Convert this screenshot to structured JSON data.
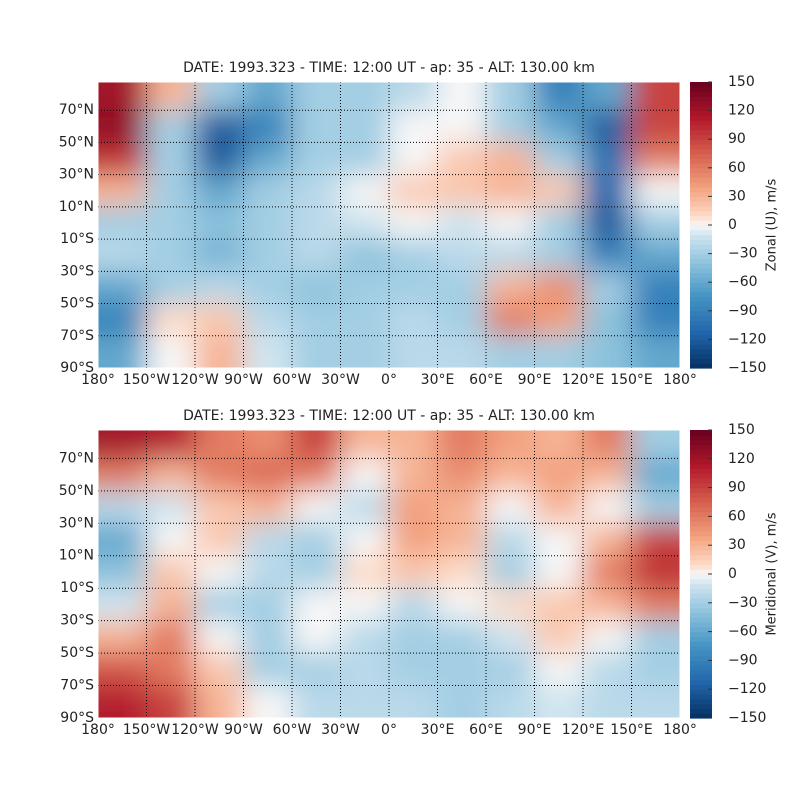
{
  "chart_data": [
    {
      "type": "heatmap",
      "title": "DATE: 1993.323 - TIME: 12:00 UT - ap:  35 - ALT:  130.00 km",
      "colorbar_label": "Zonal (U), m/s",
      "xlim": [
        -180,
        180
      ],
      "ylim": [
        -90,
        87.5
      ],
      "clim": [
        -150,
        150
      ],
      "grid": true,
      "xticks": [
        {
          "value": -180,
          "label": "180°"
        },
        {
          "value": -150,
          "label": "150°W"
        },
        {
          "value": -120,
          "label": "120°W"
        },
        {
          "value": -90,
          "label": "90°W"
        },
        {
          "value": -60,
          "label": "60°W"
        },
        {
          "value": -30,
          "label": "30°W"
        },
        {
          "value": 0,
          "label": "0°"
        },
        {
          "value": 30,
          "label": "30°E"
        },
        {
          "value": 60,
          "label": "60°E"
        },
        {
          "value": 90,
          "label": "90°E"
        },
        {
          "value": 120,
          "label": "120°E"
        },
        {
          "value": 150,
          "label": "150°E"
        },
        {
          "value": 180,
          "label": "180°"
        }
      ],
      "yticks": [
        {
          "value": -90,
          "label": "90°S"
        },
        {
          "value": -70,
          "label": "70°S"
        },
        {
          "value": -50,
          "label": "50°S"
        },
        {
          "value": -30,
          "label": "30°S"
        },
        {
          "value": -10,
          "label": "10°S"
        },
        {
          "value": 10,
          "label": "10°N"
        },
        {
          "value": 30,
          "label": "30°N"
        },
        {
          "value": 50,
          "label": "50°N"
        },
        {
          "value": 70,
          "label": "70°N"
        }
      ],
      "cticks": [
        {
          "value": -150,
          "label": "−150"
        },
        {
          "value": -120,
          "label": "−120"
        },
        {
          "value": -90,
          "label": "−90"
        },
        {
          "value": -60,
          "label": "−60"
        },
        {
          "value": -30,
          "label": "−30"
        },
        0,
        30,
        60,
        90,
        120,
        150
      ],
      "x": [
        -165,
        -135,
        -105,
        -75,
        -45,
        -15,
        15,
        45,
        75,
        105,
        135,
        165
      ],
      "y": [
        80,
        60,
        40,
        20,
        0,
        -20,
        -40,
        -60,
        -80
      ],
      "values": [
        [
          120,
          30,
          -30,
          -60,
          -30,
          -30,
          -20,
          0,
          -30,
          -90,
          -60,
          90
        ],
        [
          130,
          -30,
          -120,
          -90,
          -30,
          -30,
          0,
          0,
          -30,
          -60,
          -120,
          90
        ],
        [
          100,
          -30,
          -120,
          -60,
          -30,
          -30,
          0,
          20,
          30,
          -30,
          -100,
          60
        ],
        [
          30,
          -30,
          -60,
          -30,
          -20,
          0,
          20,
          20,
          30,
          20,
          -110,
          0
        ],
        [
          -30,
          -30,
          -40,
          -30,
          -20,
          -10,
          0,
          -10,
          0,
          -30,
          -120,
          -30
        ],
        [
          -20,
          -30,
          -50,
          -30,
          -20,
          -40,
          -30,
          -20,
          -20,
          -30,
          -90,
          -60
        ],
        [
          -60,
          -30,
          -20,
          -30,
          -40,
          -30,
          -30,
          -30,
          30,
          50,
          -30,
          -90
        ],
        [
          -90,
          10,
          20,
          -20,
          -30,
          -30,
          -20,
          -30,
          60,
          40,
          -40,
          -90
        ],
        [
          -60,
          0,
          30,
          -10,
          -30,
          -30,
          -20,
          -20,
          -30,
          -30,
          -40,
          -60
        ]
      ]
    },
    {
      "type": "heatmap",
      "title": "DATE: 1993.323 - TIME: 12:00 UT - ap:  35 - ALT:  130.00 km",
      "colorbar_label": "Meridional (V), m/s",
      "xlim": [
        -180,
        180
      ],
      "ylim": [
        -90,
        87.5
      ],
      "clim": [
        -150,
        150
      ],
      "grid": true,
      "xticks": [
        {
          "value": -180,
          "label": "180°"
        },
        {
          "value": -150,
          "label": "150°W"
        },
        {
          "value": -120,
          "label": "120°W"
        },
        {
          "value": -90,
          "label": "90°W"
        },
        {
          "value": -60,
          "label": "60°W"
        },
        {
          "value": -30,
          "label": "30°W"
        },
        {
          "value": 0,
          "label": "0°"
        },
        {
          "value": 30,
          "label": "30°E"
        },
        {
          "value": 60,
          "label": "60°E"
        },
        {
          "value": 90,
          "label": "90°E"
        },
        {
          "value": 120,
          "label": "120°E"
        },
        {
          "value": 150,
          "label": "150°E"
        },
        {
          "value": 180,
          "label": "180°"
        }
      ],
      "yticks": [
        {
          "value": -90,
          "label": "90°S"
        },
        {
          "value": -70,
          "label": "70°S"
        },
        {
          "value": -50,
          "label": "50°S"
        },
        {
          "value": -30,
          "label": "30°S"
        },
        {
          "value": -10,
          "label": "10°S"
        },
        {
          "value": 10,
          "label": "10°N"
        },
        {
          "value": 30,
          "label": "30°N"
        },
        {
          "value": 50,
          "label": "50°N"
        },
        {
          "value": 70,
          "label": "70°N"
        }
      ],
      "cticks": [
        {
          "value": -150,
          "label": "−150"
        },
        {
          "value": -120,
          "label": "−120"
        },
        {
          "value": -90,
          "label": "−90"
        },
        {
          "value": -60,
          "label": "−60"
        },
        {
          "value": -30,
          "label": "−30"
        },
        0,
        30,
        60,
        90,
        120,
        150
      ],
      "x": [
        -165,
        -135,
        -105,
        -75,
        -45,
        -15,
        15,
        45,
        75,
        105,
        135,
        165
      ],
      "y": [
        80,
        60,
        40,
        20,
        0,
        -20,
        -40,
        -60,
        -80
      ],
      "values": [
        [
          120,
          110,
          60,
          50,
          90,
          30,
          30,
          60,
          40,
          30,
          60,
          -30
        ],
        [
          60,
          30,
          60,
          70,
          60,
          0,
          30,
          50,
          30,
          40,
          30,
          -60
        ],
        [
          -20,
          -10,
          20,
          30,
          0,
          -20,
          40,
          30,
          0,
          30,
          0,
          -30
        ],
        [
          -60,
          0,
          20,
          -20,
          -30,
          0,
          40,
          30,
          -20,
          0,
          30,
          90
        ],
        [
          -40,
          20,
          0,
          -20,
          -30,
          10,
          20,
          10,
          -30,
          0,
          60,
          100
        ],
        [
          -10,
          30,
          -30,
          -30,
          0,
          0,
          -20,
          0,
          10,
          20,
          30,
          60
        ],
        [
          30,
          60,
          0,
          -30,
          0,
          -20,
          -30,
          -30,
          -10,
          20,
          0,
          -30
        ],
        [
          80,
          60,
          20,
          -30,
          -30,
          -20,
          -30,
          -30,
          -30,
          0,
          -20,
          -30
        ],
        [
          110,
          90,
          30,
          0,
          -20,
          -20,
          -20,
          -30,
          -20,
          -10,
          -20,
          -20
        ]
      ]
    }
  ]
}
